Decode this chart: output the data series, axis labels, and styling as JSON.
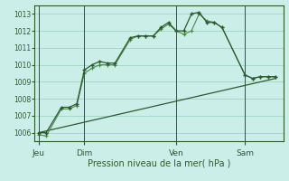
{
  "title": "Pression niveau de la mer( hPa )",
  "bg_color": "#cceee8",
  "grid_color": "#99ccbb",
  "line_color_dark": "#2d5a2d",
  "line_color_mid": "#4a8a4a",
  "ylim": [
    1005.5,
    1013.5
  ],
  "yticks": [
    1006,
    1007,
    1008,
    1009,
    1010,
    1011,
    1012,
    1013
  ],
  "day_labels": [
    "Jeu",
    "Dim",
    "Ven",
    "Sam"
  ],
  "day_positions": [
    0,
    6,
    18,
    27
  ],
  "xlim": [
    -0.5,
    32
  ],
  "series1_x": [
    0,
    1,
    3,
    4,
    5,
    6,
    7,
    8,
    9,
    10,
    12,
    13,
    14,
    15,
    16,
    17,
    18,
    19,
    20,
    21,
    22,
    23,
    24,
    27,
    28,
    29,
    30,
    31
  ],
  "series1_y": [
    1006.0,
    1006.0,
    1007.5,
    1007.5,
    1007.7,
    1009.7,
    1010.0,
    1010.2,
    1010.1,
    1010.1,
    1011.6,
    1011.7,
    1011.7,
    1011.7,
    1012.2,
    1012.5,
    1012.0,
    1012.0,
    1013.0,
    1013.1,
    1012.5,
    1012.5,
    1012.2,
    1009.4,
    1009.2,
    1009.3,
    1009.3,
    1009.3
  ],
  "series2_x": [
    0,
    1,
    3,
    4,
    5,
    6,
    7,
    8,
    9,
    10,
    12,
    13,
    14,
    15,
    16,
    17,
    18,
    19,
    20,
    21,
    22,
    23,
    24,
    27,
    28,
    29,
    30,
    31
  ],
  "series2_y": [
    1005.9,
    1005.8,
    1007.4,
    1007.4,
    1007.6,
    1009.5,
    1009.8,
    1010.0,
    1010.0,
    1010.0,
    1011.5,
    1011.7,
    1011.7,
    1011.7,
    1012.1,
    1012.4,
    1012.0,
    1011.8,
    1012.0,
    1013.0,
    1012.6,
    1012.5,
    1012.2,
    1009.4,
    1009.2,
    1009.3,
    1009.3,
    1009.3
  ],
  "series3_x": [
    0,
    31
  ],
  "series3_y": [
    1006.0,
    1009.2
  ]
}
